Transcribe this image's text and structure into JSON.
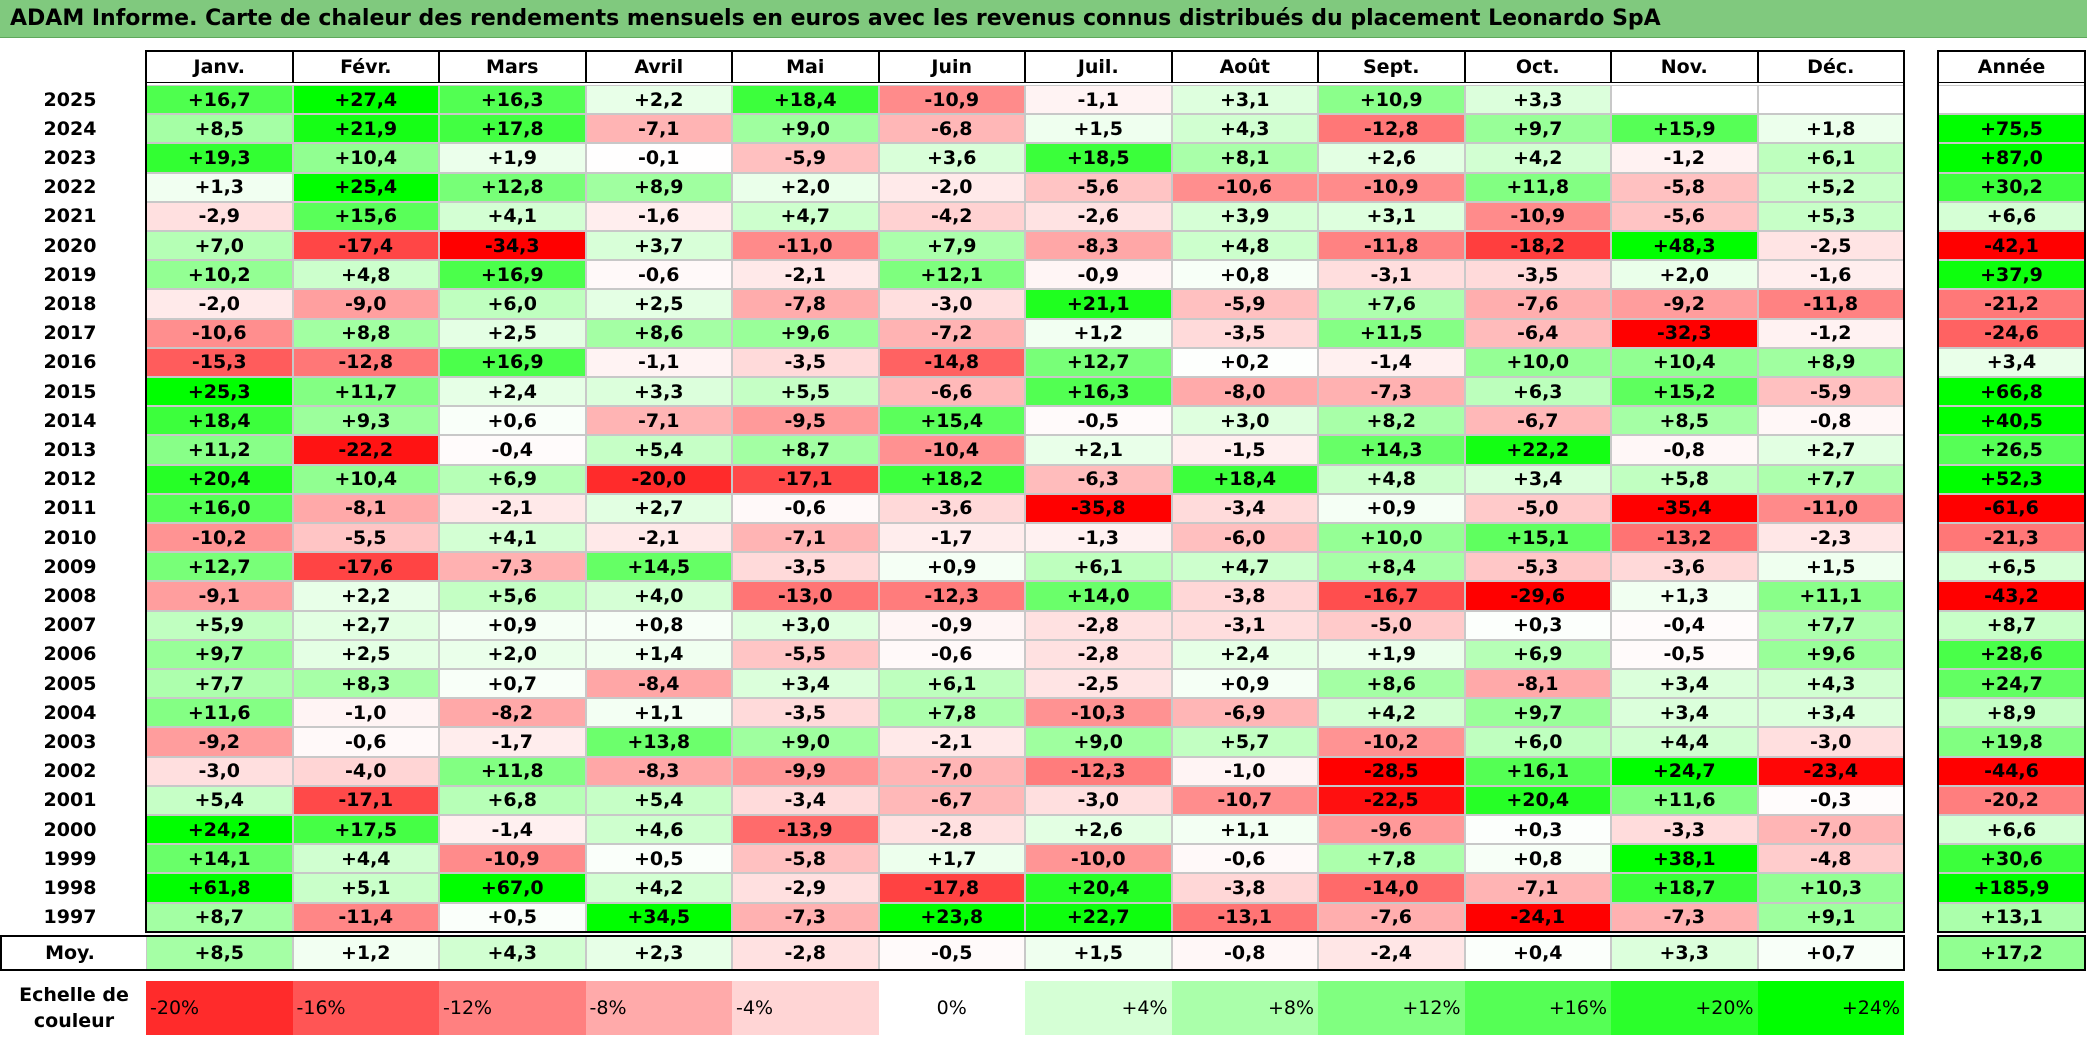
{
  "title": "ADAM Informe. Carte de chaleur des rendements mensuels en euros avec les revenus connus distribués du placement Leonardo SpA",
  "chart_data": {
    "type": "heatmap",
    "columns": [
      "Janv.",
      "Févr.",
      "Mars",
      "Avril",
      "Mai",
      "Juin",
      "Juil.",
      "Août",
      "Sept.",
      "Oct.",
      "Nov.",
      "Déc."
    ],
    "year_column": "Année",
    "rows": [
      {
        "year": "2025",
        "values": [
          "+16,7",
          "+27,4",
          "+16,3",
          "+2,2",
          "+18,4",
          "-10,9",
          "-1,1",
          "+3,1",
          "+10,9",
          "+3,3",
          "",
          ""
        ],
        "annual": ""
      },
      {
        "year": "2024",
        "values": [
          "+8,5",
          "+21,9",
          "+17,8",
          "-7,1",
          "+9,0",
          "-6,8",
          "+1,5",
          "+4,3",
          "-12,8",
          "+9,7",
          "+15,9",
          "+1,8"
        ],
        "annual": "+75,5"
      },
      {
        "year": "2023",
        "values": [
          "+19,3",
          "+10,4",
          "+1,9",
          "-0,1",
          "-5,9",
          "+3,6",
          "+18,5",
          "+8,1",
          "+2,6",
          "+4,2",
          "-1,2",
          "+6,1"
        ],
        "annual": "+87,0"
      },
      {
        "year": "2022",
        "values": [
          "+1,3",
          "+25,4",
          "+12,8",
          "+8,9",
          "+2,0",
          "-2,0",
          "-5,6",
          "-10,6",
          "-10,9",
          "+11,8",
          "-5,8",
          "+5,2"
        ],
        "annual": "+30,2"
      },
      {
        "year": "2021",
        "values": [
          "-2,9",
          "+15,6",
          "+4,1",
          "-1,6",
          "+4,7",
          "-4,2",
          "-2,6",
          "+3,9",
          "+3,1",
          "-10,9",
          "-5,6",
          "+5,3"
        ],
        "annual": "+6,6"
      },
      {
        "year": "2020",
        "values": [
          "+7,0",
          "-17,4",
          "-34,3",
          "+3,7",
          "-11,0",
          "+7,9",
          "-8,3",
          "+4,8",
          "-11,8",
          "-18,2",
          "+48,3",
          "-2,5"
        ],
        "annual": "-42,1"
      },
      {
        "year": "2019",
        "values": [
          "+10,2",
          "+4,8",
          "+16,9",
          "-0,6",
          "-2,1",
          "+12,1",
          "-0,9",
          "+0,8",
          "-3,1",
          "-3,5",
          "+2,0",
          "-1,6"
        ],
        "annual": "+37,9"
      },
      {
        "year": "2018",
        "values": [
          "-2,0",
          "-9,0",
          "+6,0",
          "+2,5",
          "-7,8",
          "-3,0",
          "+21,1",
          "-5,9",
          "+7,6",
          "-7,6",
          "-9,2",
          "-11,8"
        ],
        "annual": "-21,2"
      },
      {
        "year": "2017",
        "values": [
          "-10,6",
          "+8,8",
          "+2,5",
          "+8,6",
          "+9,6",
          "-7,2",
          "+1,2",
          "-3,5",
          "+11,5",
          "-6,4",
          "-32,3",
          "-1,2"
        ],
        "annual": "-24,6"
      },
      {
        "year": "2016",
        "values": [
          "-15,3",
          "-12,8",
          "+16,9",
          "-1,1",
          "-3,5",
          "-14,8",
          "+12,7",
          "+0,2",
          "-1,4",
          "+10,0",
          "+10,4",
          "+8,9"
        ],
        "annual": "+3,4"
      },
      {
        "year": "2015",
        "values": [
          "+25,3",
          "+11,7",
          "+2,4",
          "+3,3",
          "+5,5",
          "-6,6",
          "+16,3",
          "-8,0",
          "-7,3",
          "+6,3",
          "+15,2",
          "-5,9"
        ],
        "annual": "+66,8"
      },
      {
        "year": "2014",
        "values": [
          "+18,4",
          "+9,3",
          "+0,6",
          "-7,1",
          "-9,5",
          "+15,4",
          "-0,5",
          "+3,0",
          "+8,2",
          "-6,7",
          "+8,5",
          "-0,8"
        ],
        "annual": "+40,5"
      },
      {
        "year": "2013",
        "values": [
          "+11,2",
          "-22,2",
          "-0,4",
          "+5,4",
          "+8,7",
          "-10,4",
          "+2,1",
          "-1,5",
          "+14,3",
          "+22,2",
          "-0,8",
          "+2,7"
        ],
        "annual": "+26,5"
      },
      {
        "year": "2012",
        "values": [
          "+20,4",
          "+10,4",
          "+6,9",
          "-20,0",
          "-17,1",
          "+18,2",
          "-6,3",
          "+18,4",
          "+4,8",
          "+3,4",
          "+5,8",
          "+7,7"
        ],
        "annual": "+52,3"
      },
      {
        "year": "2011",
        "values": [
          "+16,0",
          "-8,1",
          "-2,1",
          "+2,7",
          "-0,6",
          "-3,6",
          "-35,8",
          "-3,4",
          "+0,9",
          "-5,0",
          "-35,4",
          "-11,0"
        ],
        "annual": "-61,6"
      },
      {
        "year": "2010",
        "values": [
          "-10,2",
          "-5,5",
          "+4,1",
          "-2,1",
          "-7,1",
          "-1,7",
          "-1,3",
          "-6,0",
          "+10,0",
          "+15,1",
          "-13,2",
          "-2,3"
        ],
        "annual": "-21,3"
      },
      {
        "year": "2009",
        "values": [
          "+12,7",
          "-17,6",
          "-7,3",
          "+14,5",
          "-3,5",
          "+0,9",
          "+6,1",
          "+4,7",
          "+8,4",
          "-5,3",
          "-3,6",
          "+1,5"
        ],
        "annual": "+6,5"
      },
      {
        "year": "2008",
        "values": [
          "-9,1",
          "+2,2",
          "+5,6",
          "+4,0",
          "-13,0",
          "-12,3",
          "+14,0",
          "-3,8",
          "-16,7",
          "-29,6",
          "+1,3",
          "+11,1"
        ],
        "annual": "-43,2"
      },
      {
        "year": "2007",
        "values": [
          "+5,9",
          "+2,7",
          "+0,9",
          "+0,8",
          "+3,0",
          "-0,9",
          "-2,8",
          "-3,1",
          "-5,0",
          "+0,3",
          "-0,4",
          "+7,7"
        ],
        "annual": "+8,7"
      },
      {
        "year": "2006",
        "values": [
          "+9,7",
          "+2,5",
          "+2,0",
          "+1,4",
          "-5,5",
          "-0,6",
          "-2,8",
          "+2,4",
          "+1,9",
          "+6,9",
          "-0,5",
          "+9,6"
        ],
        "annual": "+28,6"
      },
      {
        "year": "2005",
        "values": [
          "+7,7",
          "+8,3",
          "+0,7",
          "-8,4",
          "+3,4",
          "+6,1",
          "-2,5",
          "+0,9",
          "+8,6",
          "-8,1",
          "+3,4",
          "+4,3"
        ],
        "annual": "+24,7"
      },
      {
        "year": "2004",
        "values": [
          "+11,6",
          "-1,0",
          "-8,2",
          "+1,1",
          "-3,5",
          "+7,8",
          "-10,3",
          "-6,9",
          "+4,2",
          "+9,7",
          "+3,4",
          "+3,4"
        ],
        "annual": "+8,9"
      },
      {
        "year": "2003",
        "values": [
          "-9,2",
          "-0,6",
          "-1,7",
          "+13,8",
          "+9,0",
          "-2,1",
          "+9,0",
          "+5,7",
          "-10,2",
          "+6,0",
          "+4,4",
          "-3,0"
        ],
        "annual": "+19,8"
      },
      {
        "year": "2002",
        "values": [
          "-3,0",
          "-4,0",
          "+11,8",
          "-8,3",
          "-9,9",
          "-7,0",
          "-12,3",
          "-1,0",
          "-28,5",
          "+16,1",
          "+24,7",
          "-23,4"
        ],
        "annual": "-44,6"
      },
      {
        "year": "2001",
        "values": [
          "+5,4",
          "-17,1",
          "+6,8",
          "+5,4",
          "-3,4",
          "-6,7",
          "-3,0",
          "-10,7",
          "-22,5",
          "+20,4",
          "+11,6",
          "-0,3"
        ],
        "annual": "-20,2"
      },
      {
        "year": "2000",
        "values": [
          "+24,2",
          "+17,5",
          "-1,4",
          "+4,6",
          "-13,9",
          "-2,8",
          "+2,6",
          "+1,1",
          "-9,6",
          "+0,3",
          "-3,3",
          "-7,0"
        ],
        "annual": "+6,6"
      },
      {
        "year": "1999",
        "values": [
          "+14,1",
          "+4,4",
          "-10,9",
          "+0,5",
          "-5,8",
          "+1,7",
          "-10,0",
          "-0,6",
          "+7,8",
          "+0,8",
          "+38,1",
          "-4,8"
        ],
        "annual": "+30,6"
      },
      {
        "year": "1998",
        "values": [
          "+61,8",
          "+5,1",
          "+67,0",
          "+4,2",
          "-2,9",
          "-17,8",
          "+20,4",
          "-3,8",
          "-14,0",
          "-7,1",
          "+18,7",
          "+10,3"
        ],
        "annual": "+185,9"
      },
      {
        "year": "1997",
        "values": [
          "+8,7",
          "-11,4",
          "+0,5",
          "+34,5",
          "-7,3",
          "+23,8",
          "+22,7",
          "-13,1",
          "-7,6",
          "-24,1",
          "-7,3",
          "+9,1"
        ],
        "annual": "+13,1"
      }
    ],
    "average": {
      "label": "Moy.",
      "values": [
        "+8,5",
        "+1,2",
        "+4,3",
        "+2,3",
        "-2,8",
        "-0,5",
        "+1,5",
        "-0,8",
        "-2,4",
        "+0,4",
        "+3,3",
        "+0,7"
      ],
      "annual": "+17,2"
    },
    "scale": {
      "label_line1": "Echelle de",
      "label_line2": "couleur",
      "steps": [
        "-20%",
        "-16%",
        "-12%",
        "-8%",
        "-4%",
        "0%",
        "+4%",
        "+8%",
        "+12%",
        "+16%",
        "+20%",
        "+24%"
      ],
      "step_values": [
        -20,
        -16,
        -12,
        -8,
        -4,
        0,
        4,
        8,
        12,
        16,
        20,
        24
      ]
    },
    "colors": {
      "negative_max": "#ff0000",
      "neutral": "#ffffff",
      "positive_max": "#00ff00",
      "title_bg": "#80c97e"
    }
  }
}
